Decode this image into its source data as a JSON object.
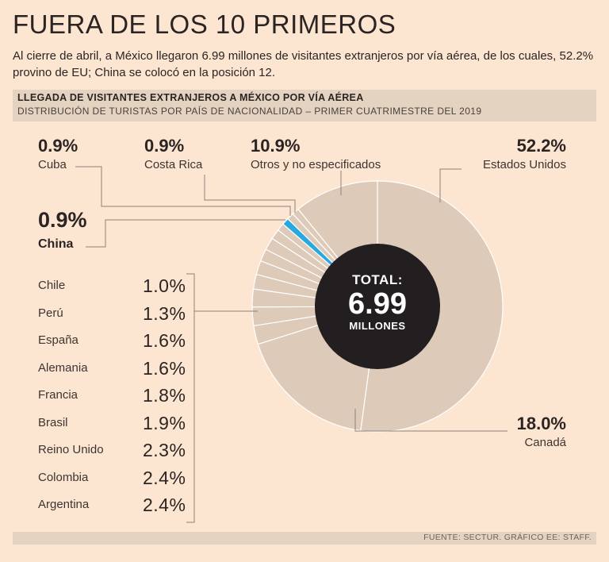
{
  "headline": "FUERA DE LOS 10 PRIMEROS",
  "intro": "Al cierre de abril, a México llegaron 6.99 millones de visitantes extranjeros por vía aérea, de los cuales, 52.2% provino de EU; China se colocó en la posición 12.",
  "section": {
    "title": "LLEGADA DE VISITANTES EXTRANJEROS A MÉXICO POR VÍA AÉREA",
    "subtitle": "DISTRIBUCIÓN DE TURISTAS POR PAÍS DE NACIONALIDAD – PRIMER CUATRIMESTRE DEL 2019"
  },
  "center": {
    "top": "TOTAL:",
    "value": "6.99",
    "bottom": "MILLONES"
  },
  "footer": "FUENTE: SECTUR. GRÁFICO EE: STAFF.",
  "colors": {
    "ring": "#ddcab8",
    "highlight": "#29a8e0",
    "center": "#231f20",
    "background": "#fde6d1"
  },
  "chart_data": {
    "type": "pie",
    "variant": "donut",
    "total_millions": 6.99,
    "slices": [
      {
        "label": "Estados Unidos",
        "value": 52.2,
        "display": "52.2%"
      },
      {
        "label": "Canadá",
        "value": 18.0,
        "display": "18.0%"
      },
      {
        "label": "Argentina",
        "value": 2.4,
        "display": "2.4%"
      },
      {
        "label": "Colombia",
        "value": 2.4,
        "display": "2.4%"
      },
      {
        "label": "Reino Unido",
        "value": 2.3,
        "display": "2.3%"
      },
      {
        "label": "Brasil",
        "value": 1.9,
        "display": "1.9%"
      },
      {
        "label": "Francia",
        "value": 1.8,
        "display": "1.8%"
      },
      {
        "label": "Alemania",
        "value": 1.6,
        "display": "1.6%"
      },
      {
        "label": "España",
        "value": 1.6,
        "display": "1.6%"
      },
      {
        "label": "Perú",
        "value": 1.3,
        "display": "1.3%"
      },
      {
        "label": "Chile",
        "value": 1.0,
        "display": "1.0%"
      },
      {
        "label": "China",
        "value": 0.9,
        "display": "0.9%",
        "highlight": true
      },
      {
        "label": "Cuba",
        "value": 0.9,
        "display": "0.9%"
      },
      {
        "label": "Costa Rica",
        "value": 0.9,
        "display": "0.9%"
      },
      {
        "label": "Otros y no especificados",
        "value": 10.9,
        "display": "10.9%"
      }
    ]
  }
}
